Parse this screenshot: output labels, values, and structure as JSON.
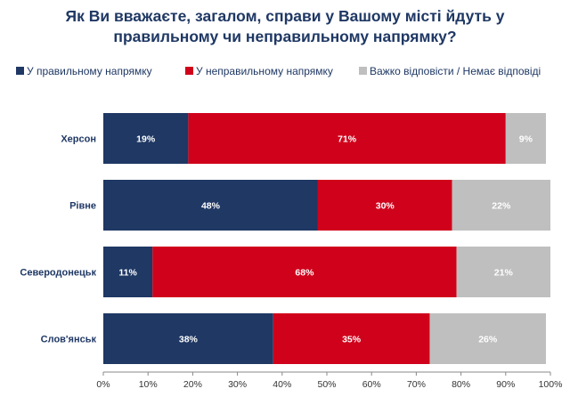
{
  "chart_data": {
    "type": "bar",
    "orientation": "horizontal",
    "stacked": true,
    "title_lines": [
      "Як Ви вважаєте, загалом, справи у Вашому місті йдуть у",
      "правильному чи неправильному напрямку?"
    ],
    "categories": [
      "Херсон",
      "Рівне",
      "Северодонецьк",
      "Слов'янськ"
    ],
    "series": [
      {
        "name": "У правильному напрямку",
        "color": "#1f3864",
        "values": [
          19,
          48,
          11,
          38
        ]
      },
      {
        "name": "У неправильному напрямку",
        "color": "#d0021b",
        "values": [
          71,
          30,
          68,
          35
        ]
      },
      {
        "name": "Важко відповісти / Немає відповіді",
        "color": "#bfbfbf",
        "values": [
          9,
          22,
          21,
          26
        ]
      }
    ],
    "value_suffix": "%",
    "xlim": [
      0,
      100
    ],
    "xticks": [
      "0%",
      "10%",
      "20%",
      "30%",
      "40%",
      "50%",
      "60%",
      "70%",
      "80%",
      "90%",
      "100%"
    ],
    "legend_position": "top",
    "grid": false
  }
}
